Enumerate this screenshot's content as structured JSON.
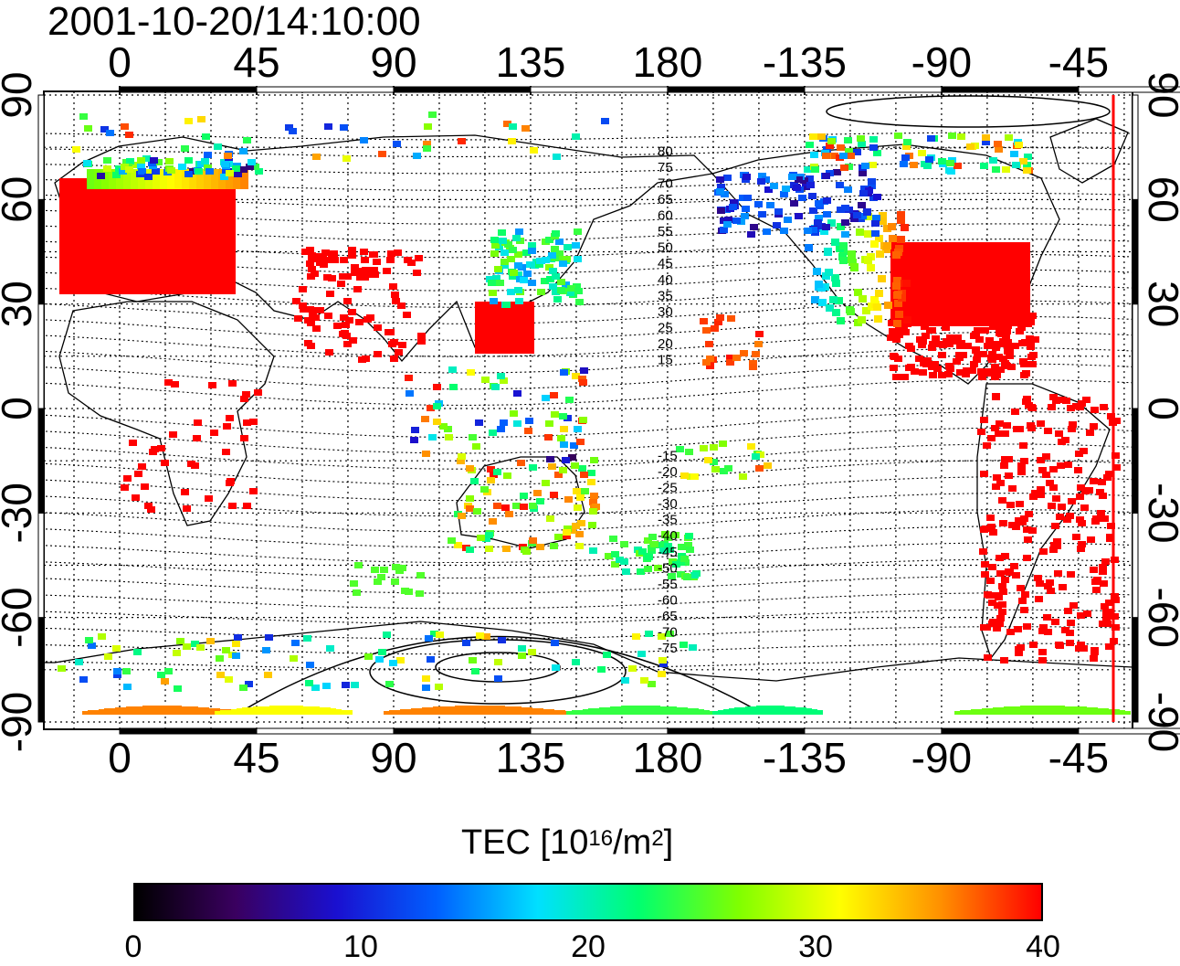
{
  "title": "2001-10-20/14:10:00",
  "map": {
    "top_lon_labels": [
      "0",
      "45",
      "90",
      "135",
      "180",
      "-135",
      "-90",
      "-45"
    ],
    "bottom_lon_labels": [
      "0",
      "45",
      "90",
      "135",
      "180",
      "-135",
      "-90",
      "-45"
    ],
    "left_lat_labels": [
      "90",
      "60",
      "30",
      "0",
      "-30",
      "-60",
      "-90"
    ],
    "right_lat_labels": [
      "90",
      "60",
      "30",
      "0",
      "-30",
      "-60",
      "-90"
    ],
    "contour_labels": [
      "80",
      "75",
      "70",
      "65",
      "60",
      "55",
      "50",
      "45",
      "40",
      "35",
      "30",
      "25",
      "20",
      "15",
      "-15",
      "-20",
      "-25",
      "-30",
      "-35",
      "-40",
      "-45",
      "-50",
      "-55",
      "-60",
      "-65",
      "-70",
      "-75"
    ],
    "terminator_color": "#ff0000"
  },
  "colorbar": {
    "label_main": "TEC  [10",
    "label_exp": "16",
    "label_unit": "/m",
    "label_exp2": "2",
    "label_end": "]",
    "min": 0,
    "max": 40,
    "ticks": [
      "0",
      "10",
      "20",
      "30",
      "40"
    ],
    "colors": [
      "#000000",
      "#3a0060",
      "#1a10d0",
      "#0060ff",
      "#00e0ff",
      "#00ff70",
      "#80ff00",
      "#ffff00",
      "#ff9000",
      "#ff0000"
    ]
  }
}
